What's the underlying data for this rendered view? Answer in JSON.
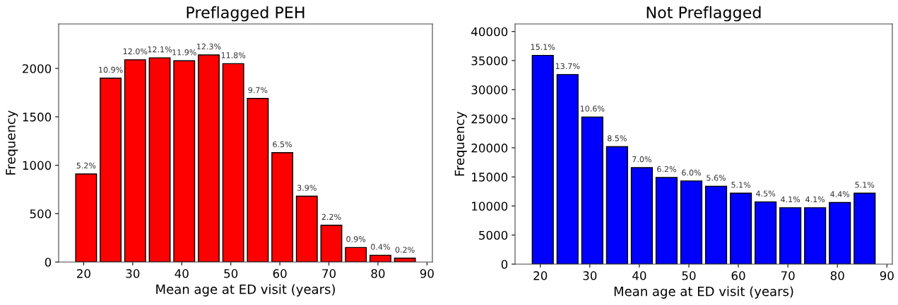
{
  "chart_data": [
    {
      "type": "histogram",
      "title": "Preflagged PEH",
      "xlabel": "Mean age at ED visit (years)",
      "ylabel": "Frequency",
      "bins": [
        18,
        23,
        28,
        33,
        38,
        43,
        48,
        53,
        58,
        63,
        68,
        73,
        78,
        83,
        88
      ],
      "values": [
        910,
        1900,
        2090,
        2110,
        2080,
        2140,
        2050,
        1690,
        1130,
        680,
        380,
        150,
        70,
        40
      ],
      "annotations": [
        {
          "text": "5.2%",
          "x": 20.5,
          "y": 910
        },
        {
          "text": "10.9%",
          "x": 25.5,
          "y": 1900
        },
        {
          "text": "12.0%",
          "x": 30.5,
          "y": 2090
        },
        {
          "text": "12.1%",
          "x": 35.5,
          "y": 2110
        },
        {
          "text": "11.9%",
          "x": 40.5,
          "y": 2080
        },
        {
          "text": "12.3%",
          "x": 45.5,
          "y": 2140
        },
        {
          "text": "11.8%",
          "x": 50.5,
          "y": 2050
        },
        {
          "text": "9.7%",
          "x": 55.5,
          "y": 1690
        },
        {
          "text": "6.5%",
          "x": 60.5,
          "y": 1130
        },
        {
          "text": "3.9%",
          "x": 65.5,
          "y": 680
        },
        {
          "text": "2.2%",
          "x": 70.5,
          "y": 380
        },
        {
          "text": "0.9%",
          "x": 75.5,
          "y": 150
        },
        {
          "text": "0.4%",
          "x": 80.5,
          "y": 70
        },
        {
          "text": "0.2%",
          "x": 85.5,
          "y": 40
        }
      ],
      "color": "#ff0000",
      "xlim": [
        14.9,
        91.1
      ],
      "ylim": [
        0,
        2460
      ],
      "xticks": [
        20,
        30,
        40,
        50,
        60,
        70,
        80,
        90
      ],
      "yticks": [
        0,
        500,
        1000,
        1500,
        2000
      ]
    },
    {
      "type": "histogram",
      "title": "Not Preflagged",
      "xlabel": "Mean age at ED visit (years)",
      "ylabel": "Frequency",
      "bins": [
        18,
        23,
        28,
        33,
        38,
        43,
        48,
        53,
        58,
        63,
        68,
        73,
        78,
        83,
        88
      ],
      "values": [
        35900,
        32600,
        25300,
        20200,
        16600,
        14900,
        14300,
        13400,
        12200,
        10700,
        9700,
        9700,
        10600,
        12200
      ],
      "annotations": [
        {
          "text": "15.1%",
          "x": 20.5,
          "y": 35900
        },
        {
          "text": "13.7%",
          "x": 25.5,
          "y": 32600
        },
        {
          "text": "10.6%",
          "x": 30.5,
          "y": 25300
        },
        {
          "text": "8.5%",
          "x": 35.5,
          "y": 20200
        },
        {
          "text": "7.0%",
          "x": 40.5,
          "y": 16600
        },
        {
          "text": "6.2%",
          "x": 45.5,
          "y": 14900
        },
        {
          "text": "6.0%",
          "x": 50.5,
          "y": 14300
        },
        {
          "text": "5.6%",
          "x": 55.5,
          "y": 13400
        },
        {
          "text": "5.1%",
          "x": 60.5,
          "y": 12200
        },
        {
          "text": "4.5%",
          "x": 65.5,
          "y": 10700
        },
        {
          "text": "4.1%",
          "x": 70.5,
          "y": 9700
        },
        {
          "text": "4.1%",
          "x": 75.5,
          "y": 9700
        },
        {
          "text": "4.4%",
          "x": 80.5,
          "y": 10600
        },
        {
          "text": "5.1%",
          "x": 85.5,
          "y": 12200
        }
      ],
      "color": "#0000ff",
      "xlim": [
        14.9,
        91.1
      ],
      "ylim": [
        0,
        41300
      ],
      "xticks": [
        20,
        30,
        40,
        50,
        60,
        70,
        80,
        90
      ],
      "yticks": [
        0,
        5000,
        10000,
        15000,
        20000,
        25000,
        30000,
        35000,
        40000
      ]
    }
  ]
}
